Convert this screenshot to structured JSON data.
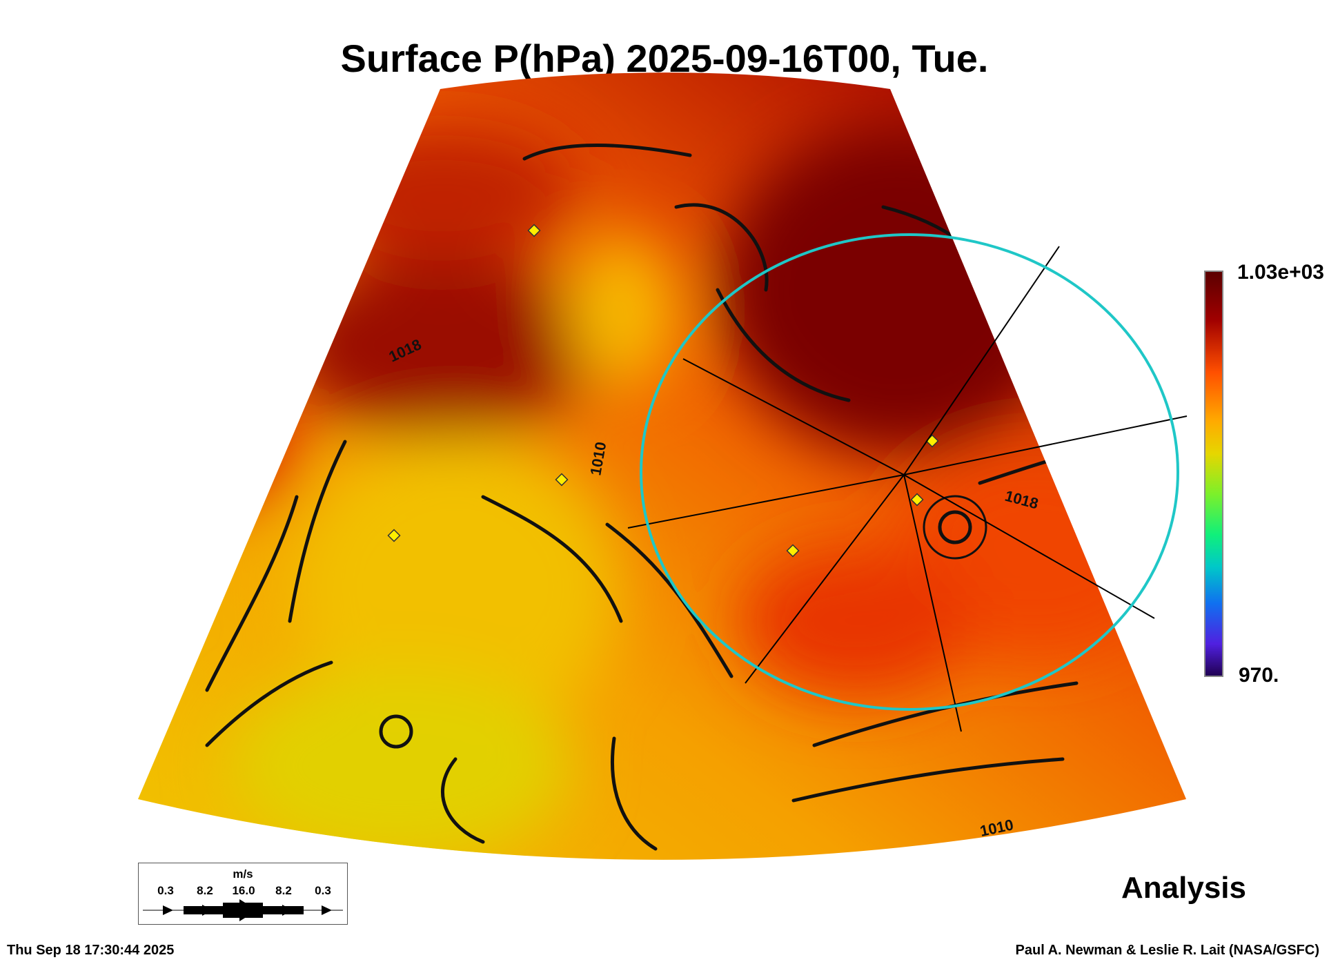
{
  "title": "Surface P(hPa) 2025-09-16T00, Tue.",
  "chart_data": {
    "type": "heatmap",
    "title": "Surface P(hPa) 2025-09-16T00, Tue.",
    "variable": "Surface pressure (hPa) with surface wind streamlines",
    "colorbar": {
      "max_label": "1.03e+03",
      "min_label": "970.",
      "min": 970,
      "max": 1030,
      "colormap": "rainbow"
    },
    "contour_labels": [
      "1018",
      "1018",
      "1018",
      "1010",
      "1010",
      "1018",
      "1018",
      "1010"
    ],
    "wind_legend": {
      "unit": "m/s",
      "ticks": [
        "0.3",
        "8.2",
        "16.0",
        "8.2",
        "0.3"
      ]
    },
    "colors": {
      "high": "#7a0000",
      "mid": "#f04a00",
      "low": "#f3b400",
      "ring": "#1fc7c7",
      "marker": "#ffee00"
    }
  },
  "label": "Analysis",
  "footer": {
    "timestamp": "Thu Sep 18 17:30:44 2025",
    "credit": "Paul A. Newman & Leslie R. Lait (NASA/GSFC)"
  }
}
